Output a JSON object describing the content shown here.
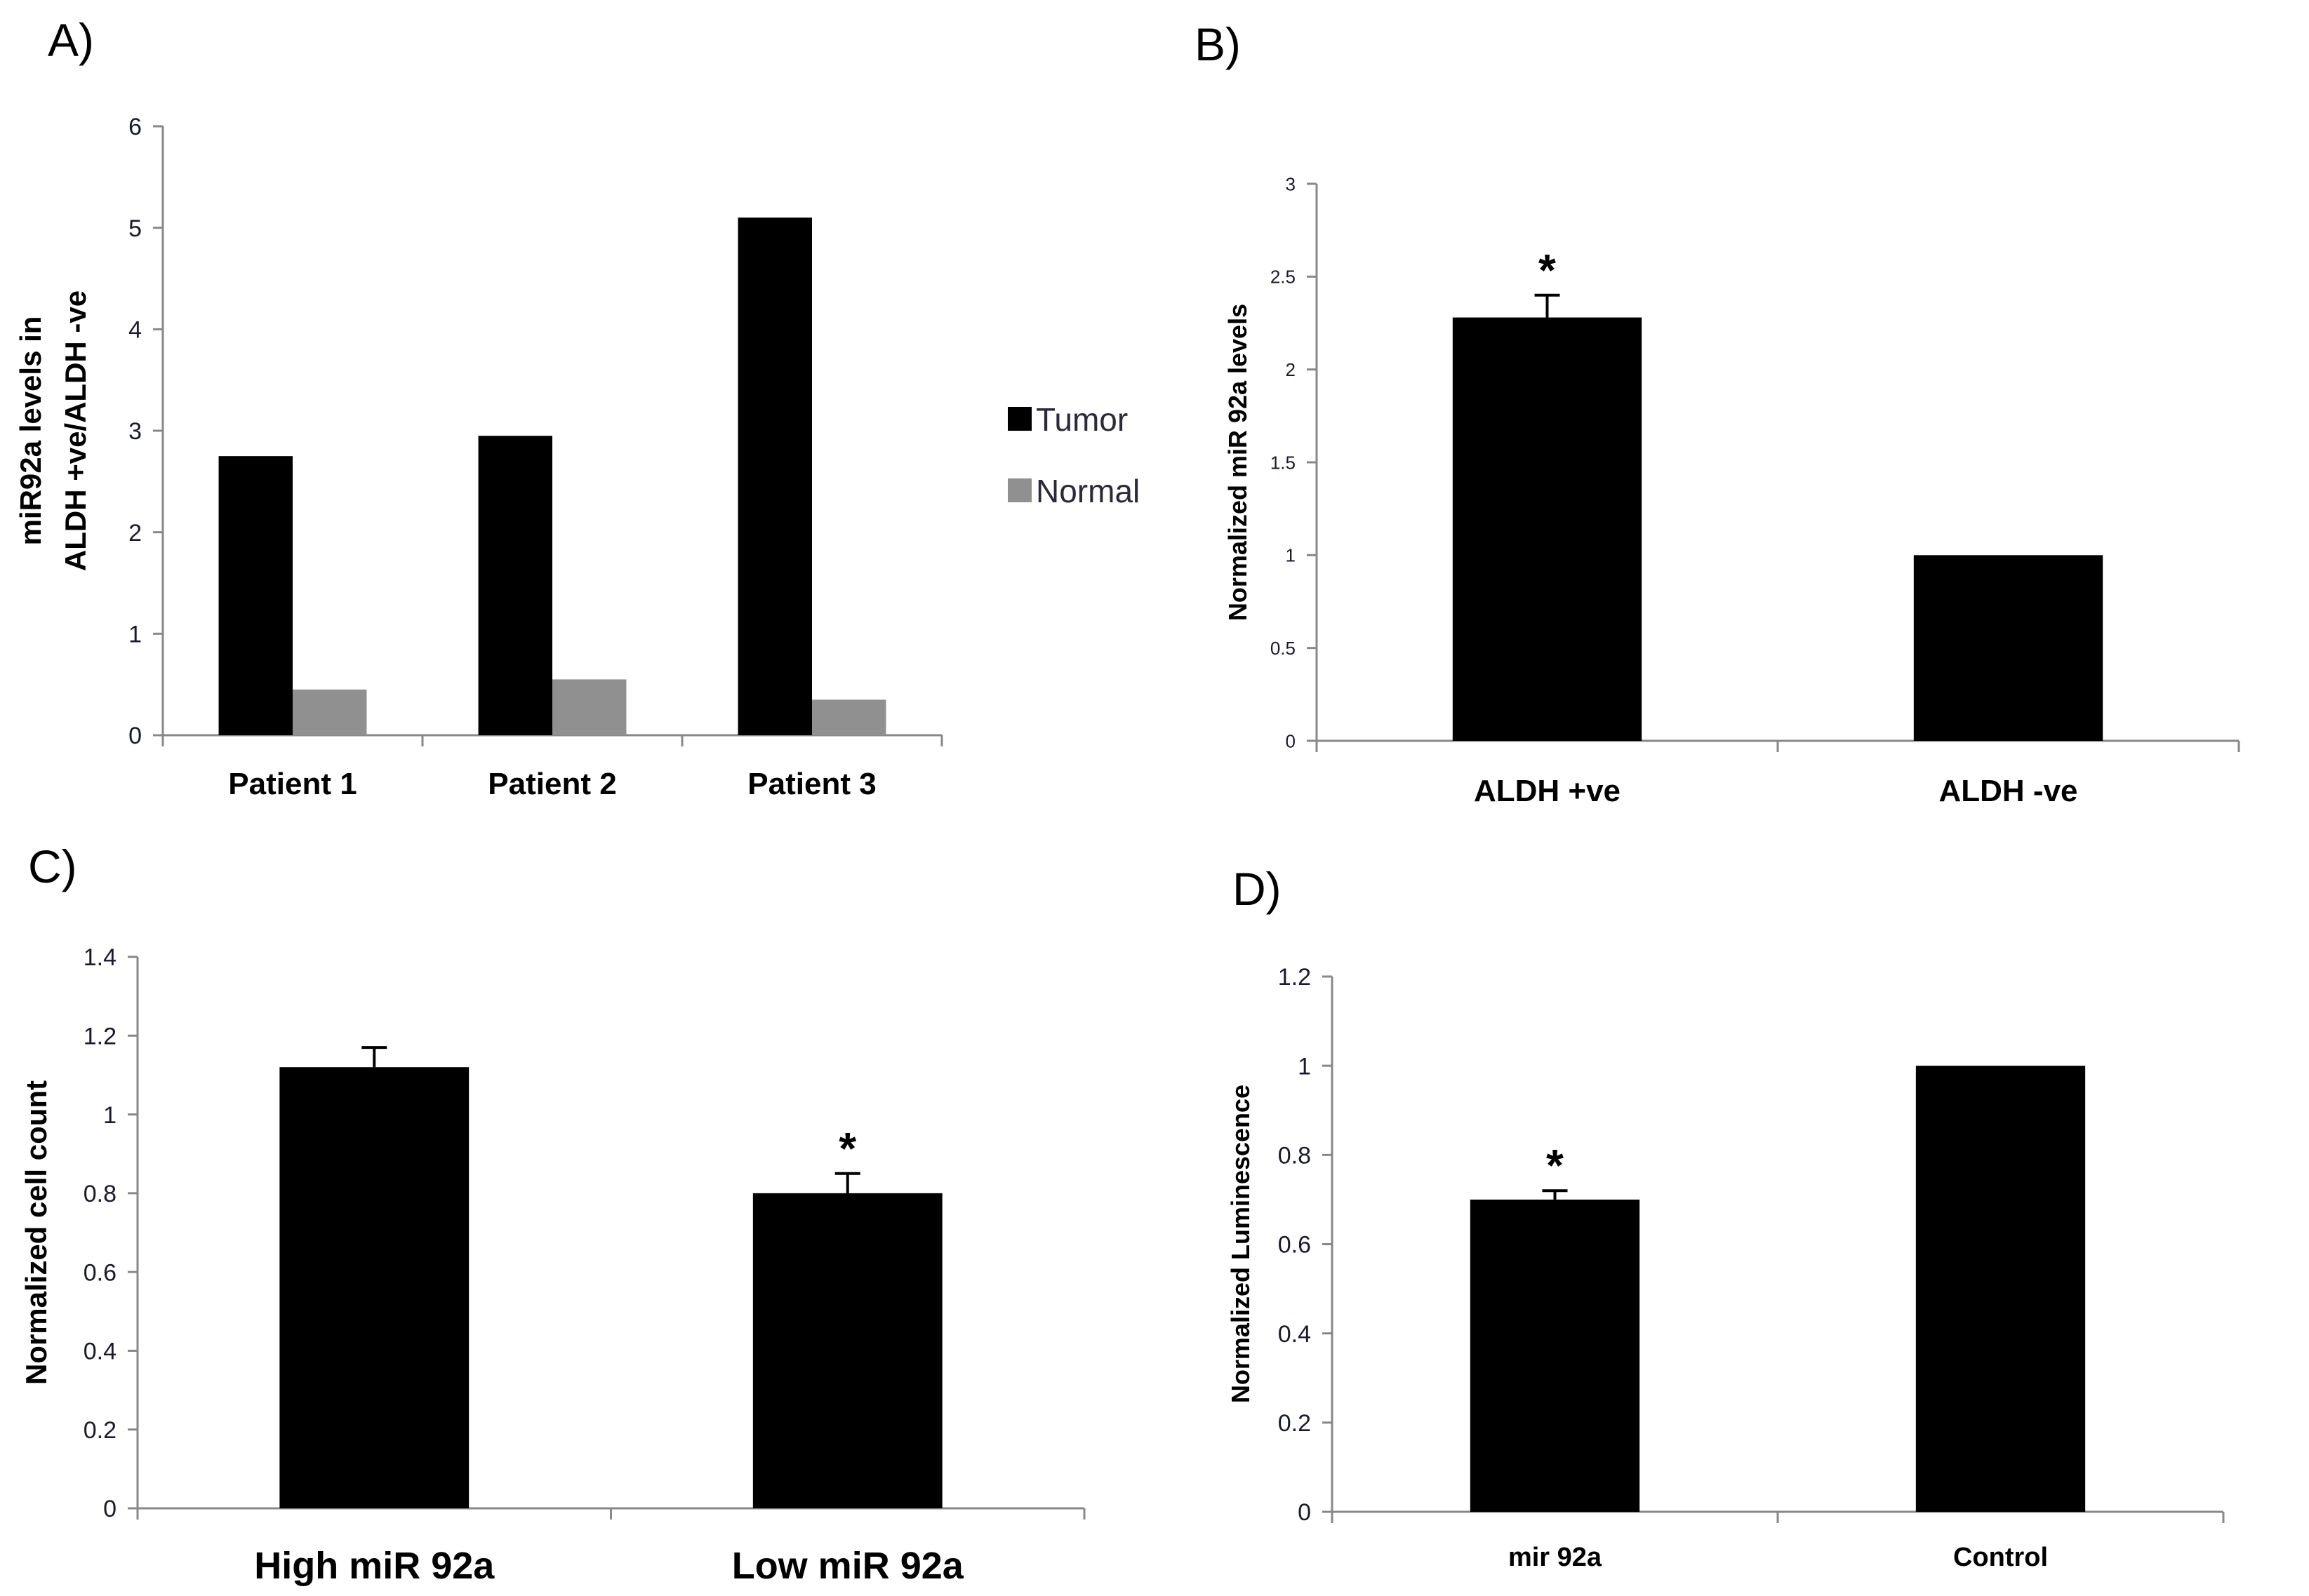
{
  "chart_data": [
    {
      "id": "A",
      "panel_label": "A)",
      "type": "bar",
      "ylabel_lines": [
        "miR92a levels in",
        "ALDH +ve/ALDH -ve"
      ],
      "ylim": [
        0,
        6
      ],
      "yticks": [
        "0",
        "1",
        "2",
        "3",
        "4",
        "5",
        "6"
      ],
      "categories": [
        "Patient 1",
        "Patient 2",
        "Patient 3"
      ],
      "series": [
        {
          "name": "Tumor",
          "color": "#000000",
          "values": [
            2.75,
            2.95,
            5.1
          ]
        },
        {
          "name": "Normal",
          "color": "#909090",
          "values": [
            0.45,
            0.55,
            0.35
          ]
        }
      ],
      "legend": "right"
    },
    {
      "id": "B",
      "panel_label": "B)",
      "type": "bar",
      "ylabel": "Normalized miR 92a levels",
      "ylim": [
        0,
        3
      ],
      "yticks": [
        "0",
        "0.5",
        "1",
        "1.5",
        "2",
        "2.5",
        "3"
      ],
      "categories": [
        "ALDH +ve",
        "ALDH -ve"
      ],
      "values": [
        2.28,
        1.0
      ],
      "errors": [
        0.12,
        0
      ],
      "annotations": [
        "*",
        ""
      ]
    },
    {
      "id": "C",
      "panel_label": "C)",
      "type": "bar",
      "ylabel": "Normalized cell count",
      "ylim": [
        0,
        1.4
      ],
      "yticks": [
        "0",
        "0.2",
        "0.4",
        "0.6",
        "0.8",
        "1",
        "1.2",
        "1.4"
      ],
      "categories": [
        "High miR 92a",
        "Low miR 92a"
      ],
      "values": [
        1.12,
        0.8
      ],
      "errors": [
        0.05,
        0.05
      ],
      "annotations": [
        "",
        "*"
      ]
    },
    {
      "id": "D",
      "panel_label": "D)",
      "type": "bar",
      "ylabel": "Normalized Luminescence",
      "ylim": [
        0,
        1.2
      ],
      "yticks": [
        "0",
        "0.2",
        "0.4",
        "0.6",
        "0.8",
        "1",
        "1.2"
      ],
      "categories": [
        "mir 92a",
        "Control"
      ],
      "values": [
        0.7,
        1.0
      ],
      "errors": [
        0.02,
        0
      ],
      "annotations": [
        "*",
        ""
      ]
    }
  ]
}
